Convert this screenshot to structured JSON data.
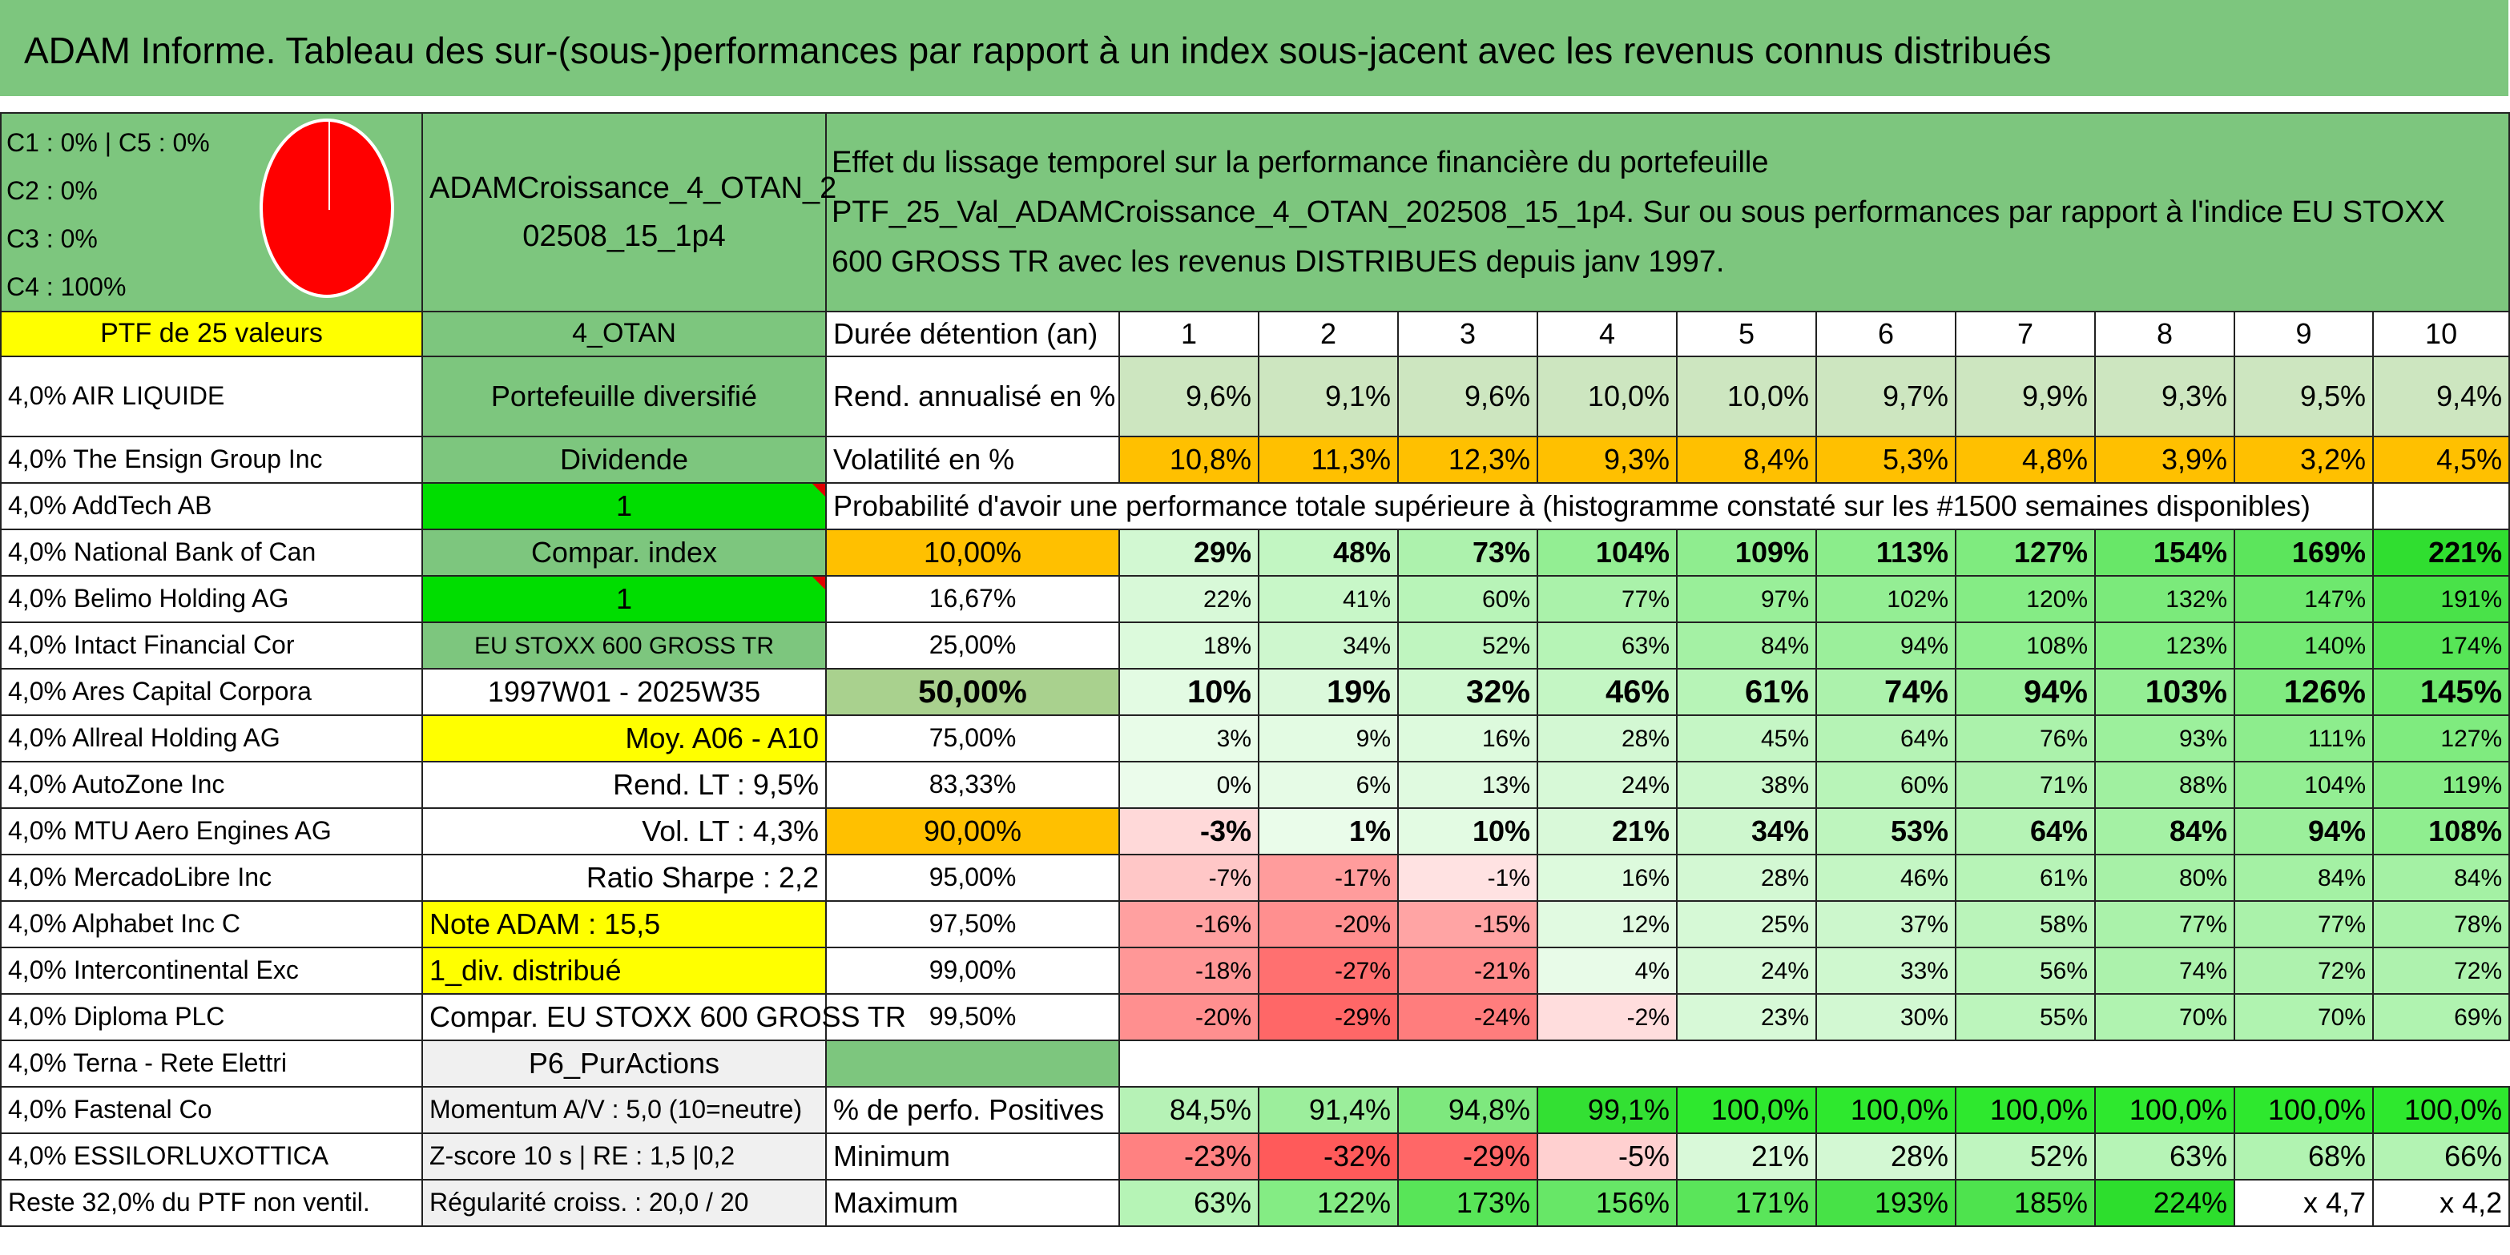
{
  "title": "ADAM Informe. Tableau des sur-(sous-)performances par rapport à un index sous-jacent avec les revenus connus distribués",
  "class_lines": [
    "C1 : 0% | C5 : 0%",
    "C2 : 0%",
    "C3 : 0%",
    "C4 : 100%"
  ],
  "portfolio_name": "ADAMCroissance_4_OTAN_2 02508_15_1p4",
  "description": "Effet du lissage temporel sur la performance financière du portefeuille PTF_25_Val_ADAMCroissance_4_OTAN_202508_15_1p4. Sur ou sous performances par rapport à l'indice EU STOXX 600 GROSS TR avec les revenus DISTRIBUES depuis janv 1997.",
  "ptf_label": "PTF de 25 valeurs",
  "holdings": [
    "4,0% AIR LIQUIDE",
    "4,0% The Ensign Group Inc",
    "4,0% AddTech AB",
    "4,0% National Bank of Can",
    "4,0% Belimo Holding AG",
    "4,0% Intact Financial Cor",
    "4,0% Ares Capital Corpora",
    "4,0% Allreal Holding AG",
    "4,0% AutoZone Inc",
    "4,0% MTU Aero Engines AG",
    "4,0% MercadoLibre Inc",
    "4,0% Alphabet Inc C",
    "4,0% Intercontinental Exc",
    "4,0% Diploma PLC",
    "4,0% Terna - Rete Elettri",
    "4,0% Fastenal Co",
    "4,0% ESSILORLUXOTTICA",
    "Reste 32,0% du PTF non ventil."
  ],
  "info": {
    "otan": "4_OTAN",
    "type": "Portefeuille diversifié",
    "dividende": "Dividende",
    "v1": "1",
    "compar": "Compar. index",
    "v2": "1",
    "index": "EU STOXX 600 GROSS TR",
    "period": "1997W01 - 2025W35",
    "moy": "Moy. A06 - A10",
    "rend": "Rend. LT : 9,5%",
    "vol": "Vol. LT : 4,3%",
    "sharpe": "Ratio Sharpe : 2,2",
    "note": "Note ADAM : 15,5",
    "div": "1_div. distribué",
    "compar2": "Compar. EU STOXX 600 GROSS TR",
    "p6": "P6_PurActions",
    "momentum": "Momentum A/V : 5,0 (10=neutre)",
    "zscore": "Z-score 10 s | RE : 1,5 |0,2",
    "regul": "Régularité croiss. : 20,0 / 20"
  },
  "labels": {
    "duree": "Durée détention (an)",
    "rend": "Rend. annualisé en %",
    "vol": "Volatilité en %",
    "proba": "Probabilité d'avoir une performance totale supérieure à (histogramme constaté sur les #1500 semaines disponibles)",
    "pos": "% de perfo. Positives",
    "min": "Minimum",
    "max": "Maximum"
  },
  "years": [
    "1",
    "2",
    "3",
    "4",
    "5",
    "6",
    "7",
    "8",
    "9",
    "10"
  ],
  "rend": [
    "9,6%",
    "9,1%",
    "9,6%",
    "10,0%",
    "10,0%",
    "9,7%",
    "9,9%",
    "9,3%",
    "9,5%",
    "9,4%"
  ],
  "vol": [
    "10,8%",
    "11,3%",
    "12,3%",
    "9,3%",
    "8,4%",
    "5,3%",
    "4,8%",
    "3,9%",
    "3,2%",
    "4,5%"
  ],
  "percentiles": [
    {
      "p": "10,00%",
      "v": [
        "29%",
        "48%",
        "73%",
        "104%",
        "109%",
        "113%",
        "127%",
        "154%",
        "169%",
        "221%"
      ]
    },
    {
      "p": "16,67%",
      "v": [
        "22%",
        "41%",
        "60%",
        "77%",
        "97%",
        "102%",
        "120%",
        "132%",
        "147%",
        "191%"
      ]
    },
    {
      "p": "25,00%",
      "v": [
        "18%",
        "34%",
        "52%",
        "63%",
        "84%",
        "94%",
        "108%",
        "123%",
        "140%",
        "174%"
      ]
    },
    {
      "p": "50,00%",
      "v": [
        "10%",
        "19%",
        "32%",
        "46%",
        "61%",
        "74%",
        "94%",
        "103%",
        "126%",
        "145%"
      ]
    },
    {
      "p": "75,00%",
      "v": [
        "3%",
        "9%",
        "16%",
        "28%",
        "45%",
        "64%",
        "76%",
        "93%",
        "111%",
        "127%"
      ]
    },
    {
      "p": "83,33%",
      "v": [
        "0%",
        "6%",
        "13%",
        "24%",
        "38%",
        "60%",
        "71%",
        "88%",
        "104%",
        "119%"
      ]
    },
    {
      "p": "90,00%",
      "v": [
        "-3%",
        "1%",
        "10%",
        "21%",
        "34%",
        "53%",
        "64%",
        "84%",
        "94%",
        "108%"
      ]
    },
    {
      "p": "95,00%",
      "v": [
        "-7%",
        "-17%",
        "-1%",
        "16%",
        "28%",
        "46%",
        "61%",
        "80%",
        "84%",
        "84%"
      ]
    },
    {
      "p": "97,50%",
      "v": [
        "-16%",
        "-20%",
        "-15%",
        "12%",
        "25%",
        "37%",
        "58%",
        "77%",
        "77%",
        "78%"
      ]
    },
    {
      "p": "99,00%",
      "v": [
        "-18%",
        "-27%",
        "-21%",
        "4%",
        "24%",
        "33%",
        "56%",
        "74%",
        "72%",
        "72%"
      ]
    },
    {
      "p": "99,50%",
      "v": [
        "-20%",
        "-29%",
        "-24%",
        "-2%",
        "23%",
        "30%",
        "55%",
        "70%",
        "70%",
        "69%"
      ]
    }
  ],
  "pos": [
    "84,5%",
    "91,4%",
    "94,8%",
    "99,1%",
    "100,0%",
    "100,0%",
    "100,0%",
    "100,0%",
    "100,0%",
    "100,0%"
  ],
  "min": [
    "-23%",
    "-32%",
    "-29%",
    "-5%",
    "21%",
    "28%",
    "52%",
    "63%",
    "68%",
    "66%"
  ],
  "max": [
    "63%",
    "122%",
    "173%",
    "156%",
    "171%",
    "193%",
    "185%",
    "224%",
    "x 4,7",
    "x 4,2"
  ],
  "colors": {
    "header_green": "#7dc67e",
    "yellow": "#ffff00",
    "lime": "#00dd00",
    "orange": "#ffc000",
    "red_text": "#e00000"
  }
}
